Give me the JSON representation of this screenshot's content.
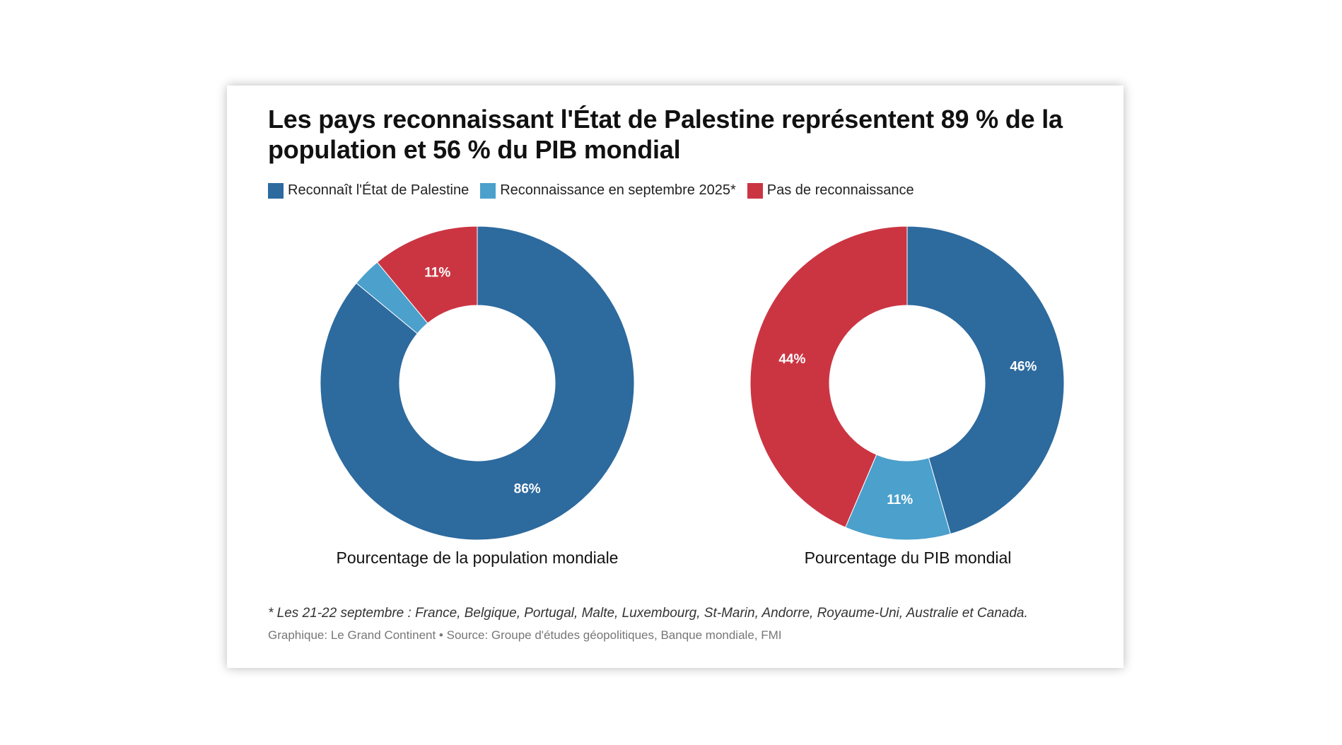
{
  "title": "Les pays reconnaissant l'État de Palestine représentent 89 % de la population et 56 % du PIB mondial",
  "legend": [
    {
      "label": "Reconnaît l'État de Palestine",
      "color": "#2d6a9e"
    },
    {
      "label": "Reconnaissance en septembre 2025*",
      "color": "#4ba0cc"
    },
    {
      "label": "Pas de reconnaissance",
      "color": "#cb3542"
    }
  ],
  "chart_data": [
    {
      "type": "pie",
      "donut": true,
      "title": "Pourcentage de la population mondiale",
      "categories": [
        "Reconnaît l'État de Palestine",
        "Reconnaissance en septembre 2025*",
        "Pas de reconnaissance"
      ],
      "values": [
        86,
        3,
        11
      ],
      "labels": [
        "86%",
        "",
        "11%"
      ],
      "colors": [
        "#2d6a9e",
        "#4ba0cc",
        "#cb3542"
      ]
    },
    {
      "type": "pie",
      "donut": true,
      "title": "Pourcentage du PIB mondial",
      "categories": [
        "Reconnaît l'État de Palestine",
        "Reconnaissance en septembre 2025*",
        "Pas de reconnaissance"
      ],
      "values": [
        46,
        11,
        44
      ],
      "labels": [
        "46%",
        "11%",
        "44%"
      ],
      "colors": [
        "#2d6a9e",
        "#4ba0cc",
        "#cb3542"
      ]
    }
  ],
  "note": "* Les 21-22 septembre : France, Belgique, Portugal, Malte, Luxembourg, St-Marin, Andorre, Royaume-Uni, Australie et Canada.",
  "source": "Graphique: Le Grand Continent • Source: Groupe d'études géopolitiques, Banque mondiale, FMI"
}
